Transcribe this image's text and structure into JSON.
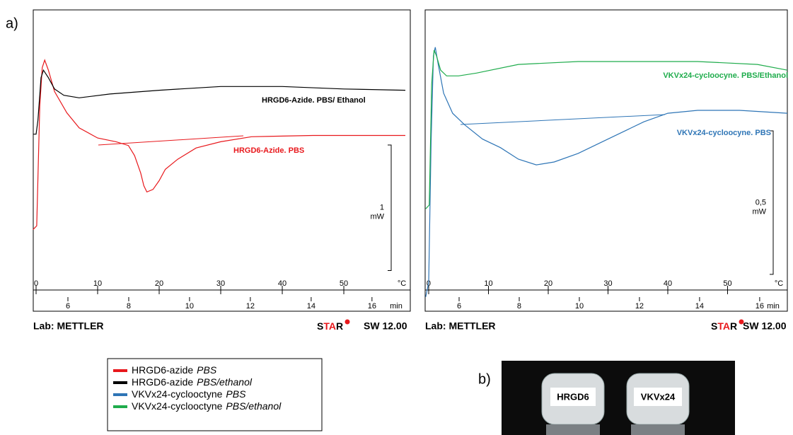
{
  "panel_labels": [
    "a)",
    "b)"
  ],
  "chart_data": [
    {
      "type": "line",
      "x_unit": "°C",
      "x2_unit": "min",
      "xlim": [
        -0.46,
        60.8
      ],
      "xticks": [
        0,
        10,
        20,
        30,
        40,
        50
      ],
      "x2lim": [
        4.86,
        17.26
      ],
      "x2ticks": [
        6,
        8,
        10,
        12,
        14,
        16
      ],
      "ylim": [
        0,
        2.4
      ],
      "scale_bar": {
        "value": 1,
        "unit": "mW"
      },
      "series": [
        {
          "name": "HRGD6-azide",
          "name_italic": "PBS",
          "color": "#e8181c",
          "x": [
            -0.5,
            0.1,
            0.6,
            1,
            1.4,
            2,
            3,
            5,
            7,
            10,
            13,
            15,
            16,
            17,
            17.5,
            18,
            19,
            20,
            21,
            23,
            26,
            30,
            35,
            45,
            55,
            60
          ],
          "values": [
            0.65,
            0.68,
            1.63,
            1.94,
            2.0,
            1.92,
            1.75,
            1.58,
            1.46,
            1.38,
            1.35,
            1.32,
            1.24,
            1.1,
            1.0,
            0.95,
            0.97,
            1.04,
            1.13,
            1.21,
            1.3,
            1.35,
            1.39,
            1.4,
            1.4,
            1.4
          ]
        },
        {
          "name": "HRGD6-azide",
          "name_italic": "PBS/ethanol",
          "color": "#000000",
          "x": [
            -0.5,
            0,
            0.3,
            0.8,
            1.2,
            2,
            3,
            4.5,
            7,
            12,
            20,
            30,
            40,
            50,
            60
          ],
          "values": [
            1.41,
            1.41,
            1.52,
            1.86,
            1.92,
            1.86,
            1.77,
            1.72,
            1.7,
            1.73,
            1.76,
            1.79,
            1.79,
            1.77,
            1.76
          ]
        }
      ],
      "annotations": [
        "HRGD6-Azide. PBS/ Ethanol",
        "HRGD6-Azide. PBS"
      ],
      "footer": {
        "lab": "Lab: METTLER",
        "software_parts": [
          "S",
          "TA",
          "R"
        ],
        "version": "SW 12.00"
      }
    },
    {
      "type": "line",
      "x_unit": "°C",
      "x2_unit": "min",
      "xlim": [
        -0.59,
        60
      ],
      "xticks": [
        0,
        10,
        20,
        30,
        40,
        50
      ],
      "x2lim": [
        4.87,
        16.92
      ],
      "x2ticks": [
        6,
        8,
        10,
        12,
        14,
        16
      ],
      "ylim": [
        0,
        1.05
      ],
      "scale_bar": {
        "value": "0,5",
        "unit": "mW"
      },
      "series": [
        {
          "name": "VKVx24-cyclooctyne",
          "name_italic": "PBS",
          "color": "#2e75b6",
          "x": [
            -0.5,
            0,
            0.4,
            0.8,
            1.1,
            1.6,
            2.5,
            4,
            6,
            9,
            12,
            15,
            18,
            21,
            25,
            30,
            33,
            36,
            40,
            45,
            52,
            60
          ],
          "values": [
            0.05,
            0.1,
            0.59,
            0.89,
            0.92,
            0.86,
            0.76,
            0.69,
            0.65,
            0.6,
            0.57,
            0.53,
            0.51,
            0.52,
            0.55,
            0.6,
            0.63,
            0.66,
            0.69,
            0.7,
            0.7,
            0.69
          ]
        },
        {
          "name": "VKVx24-cyclooctyne",
          "name_italic": "PBS/ethanol",
          "color": "#1fac4c",
          "x": [
            -0.5,
            0.1,
            0.5,
            0.9,
            1.3,
            2,
            3,
            5,
            8,
            15,
            25,
            35,
            45,
            55,
            60
          ],
          "values": [
            0.357,
            0.37,
            0.79,
            0.91,
            0.89,
            0.84,
            0.82,
            0.82,
            0.83,
            0.86,
            0.87,
            0.87,
            0.87,
            0.86,
            0.84
          ]
        }
      ],
      "annotations": [
        "VKVx24-cycloocyne. PBS/Ethanol",
        "VKVx24-cycloocyne. PBS"
      ],
      "footer": {
        "lab": "Lab: METTLER",
        "software_parts": [
          "S",
          "TA",
          "R"
        ],
        "version": "SW 12.00"
      }
    }
  ],
  "photo": {
    "labels": [
      "HRGD6",
      "VKVx24"
    ]
  }
}
